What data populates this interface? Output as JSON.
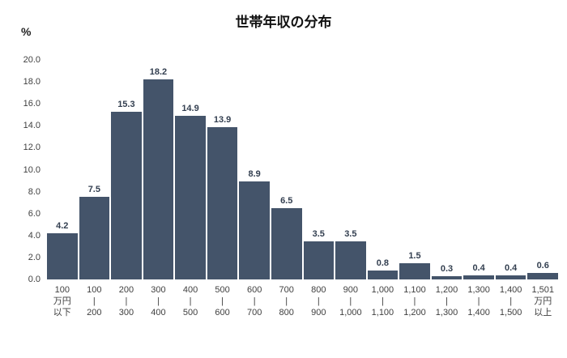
{
  "chart": {
    "title": "世帯年収の分布",
    "y_unit": "%"
  },
  "chart_data": {
    "type": "bar",
    "title": "世帯年収の分布",
    "xlabel": "",
    "ylabel": "%",
    "ylim": [
      0,
      20
    ],
    "ytick_step": 2,
    "grid": false,
    "legend": false,
    "bar_color": "#44546a",
    "value_label_color": "#333f50",
    "categories": [
      [
        "100",
        "万円",
        "以下"
      ],
      [
        "100",
        "|",
        "200"
      ],
      [
        "200",
        "|",
        "300"
      ],
      [
        "300",
        "|",
        "400"
      ],
      [
        "400",
        "|",
        "500"
      ],
      [
        "500",
        "|",
        "600"
      ],
      [
        "600",
        "|",
        "700"
      ],
      [
        "700",
        "|",
        "800"
      ],
      [
        "800",
        "|",
        "900"
      ],
      [
        "900",
        "|",
        "1,000"
      ],
      [
        "1,000",
        "|",
        "1,100"
      ],
      [
        "1,100",
        "|",
        "1,200"
      ],
      [
        "1,200",
        "|",
        "1,300"
      ],
      [
        "1,300",
        "|",
        "1,400"
      ],
      [
        "1,400",
        "|",
        "1,500"
      ],
      [
        "1,501",
        "万円",
        "以上"
      ]
    ],
    "values": [
      4.2,
      7.5,
      15.3,
      18.2,
      14.9,
      13.9,
      8.9,
      6.5,
      3.5,
      3.5,
      0.8,
      1.5,
      0.3,
      0.4,
      0.4,
      0.6
    ]
  }
}
